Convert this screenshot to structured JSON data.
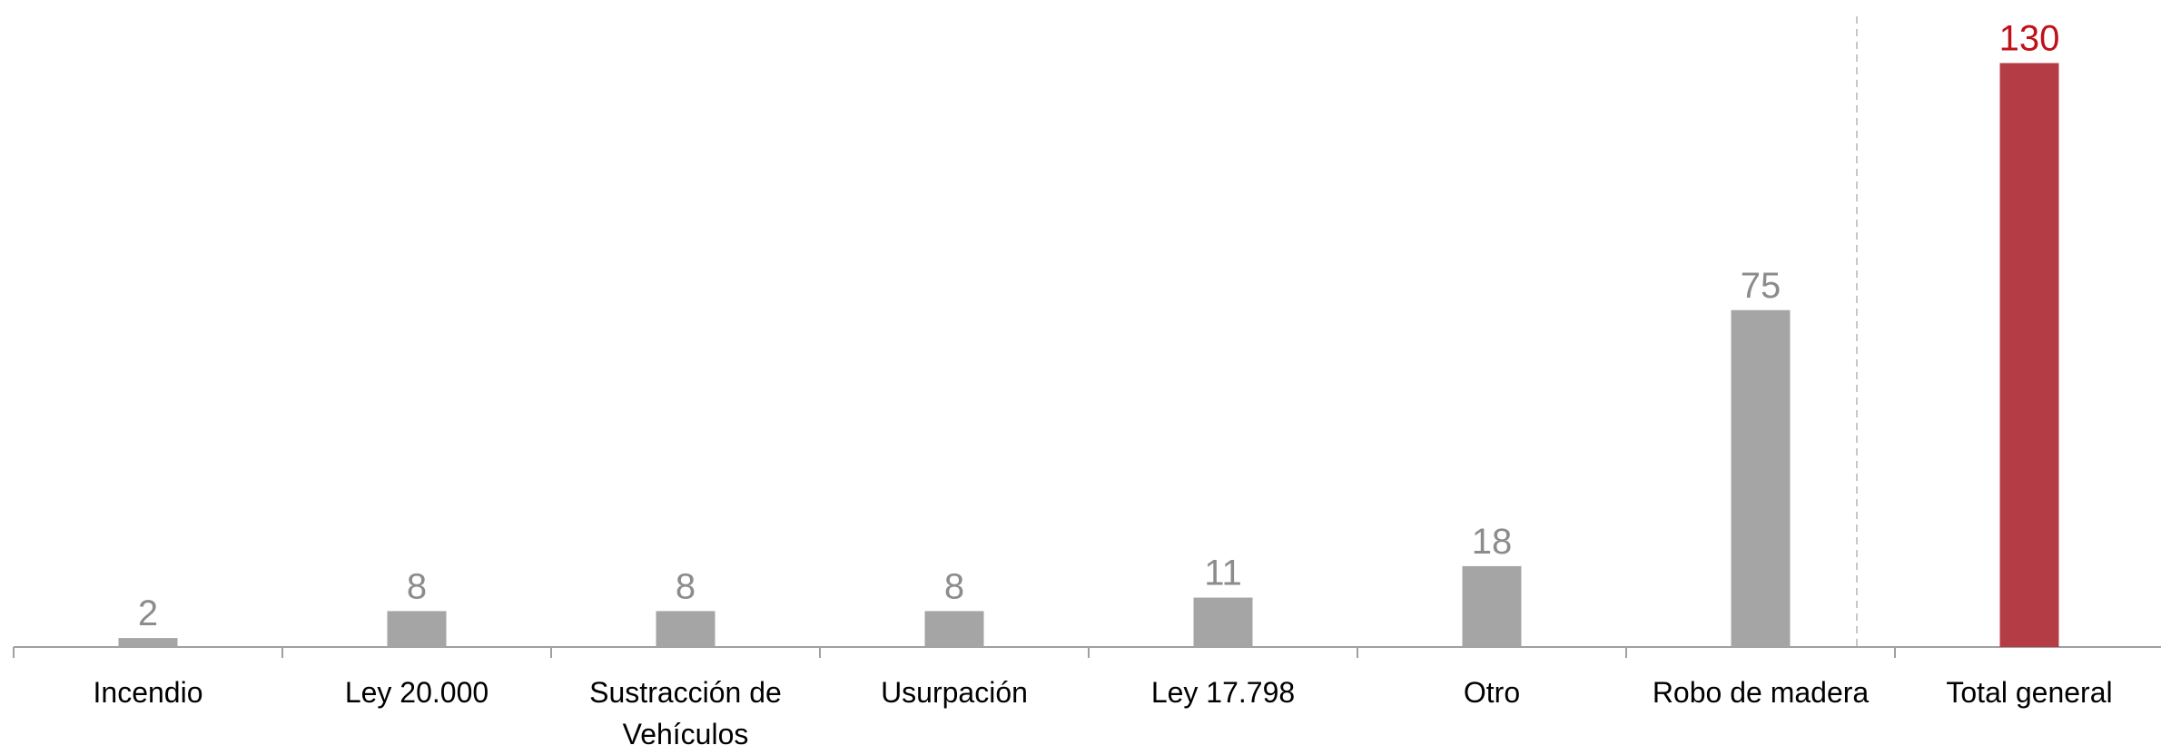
{
  "chart_data": {
    "type": "bar",
    "categories": [
      "Incendio",
      "Ley 20.000",
      "Sustracción de Vehículos",
      "Usurpación",
      "Ley 17.798",
      "Otro",
      "Robo de madera",
      "Total general"
    ],
    "values": [
      2,
      8,
      8,
      8,
      11,
      18,
      75,
      130
    ],
    "colors": [
      "#a5a5a5",
      "#a5a5a5",
      "#a5a5a5",
      "#a5a5a5",
      "#a5a5a5",
      "#a5a5a5",
      "#a5a5a5",
      "#b43c44"
    ],
    "label_colors": [
      "#8c8c8c",
      "#8c8c8c",
      "#8c8c8c",
      "#8c8c8c",
      "#8c8c8c",
      "#8c8c8c",
      "#8c8c8c",
      "#c0101a"
    ],
    "ylim": [
      0,
      140
    ],
    "grid": false
  }
}
